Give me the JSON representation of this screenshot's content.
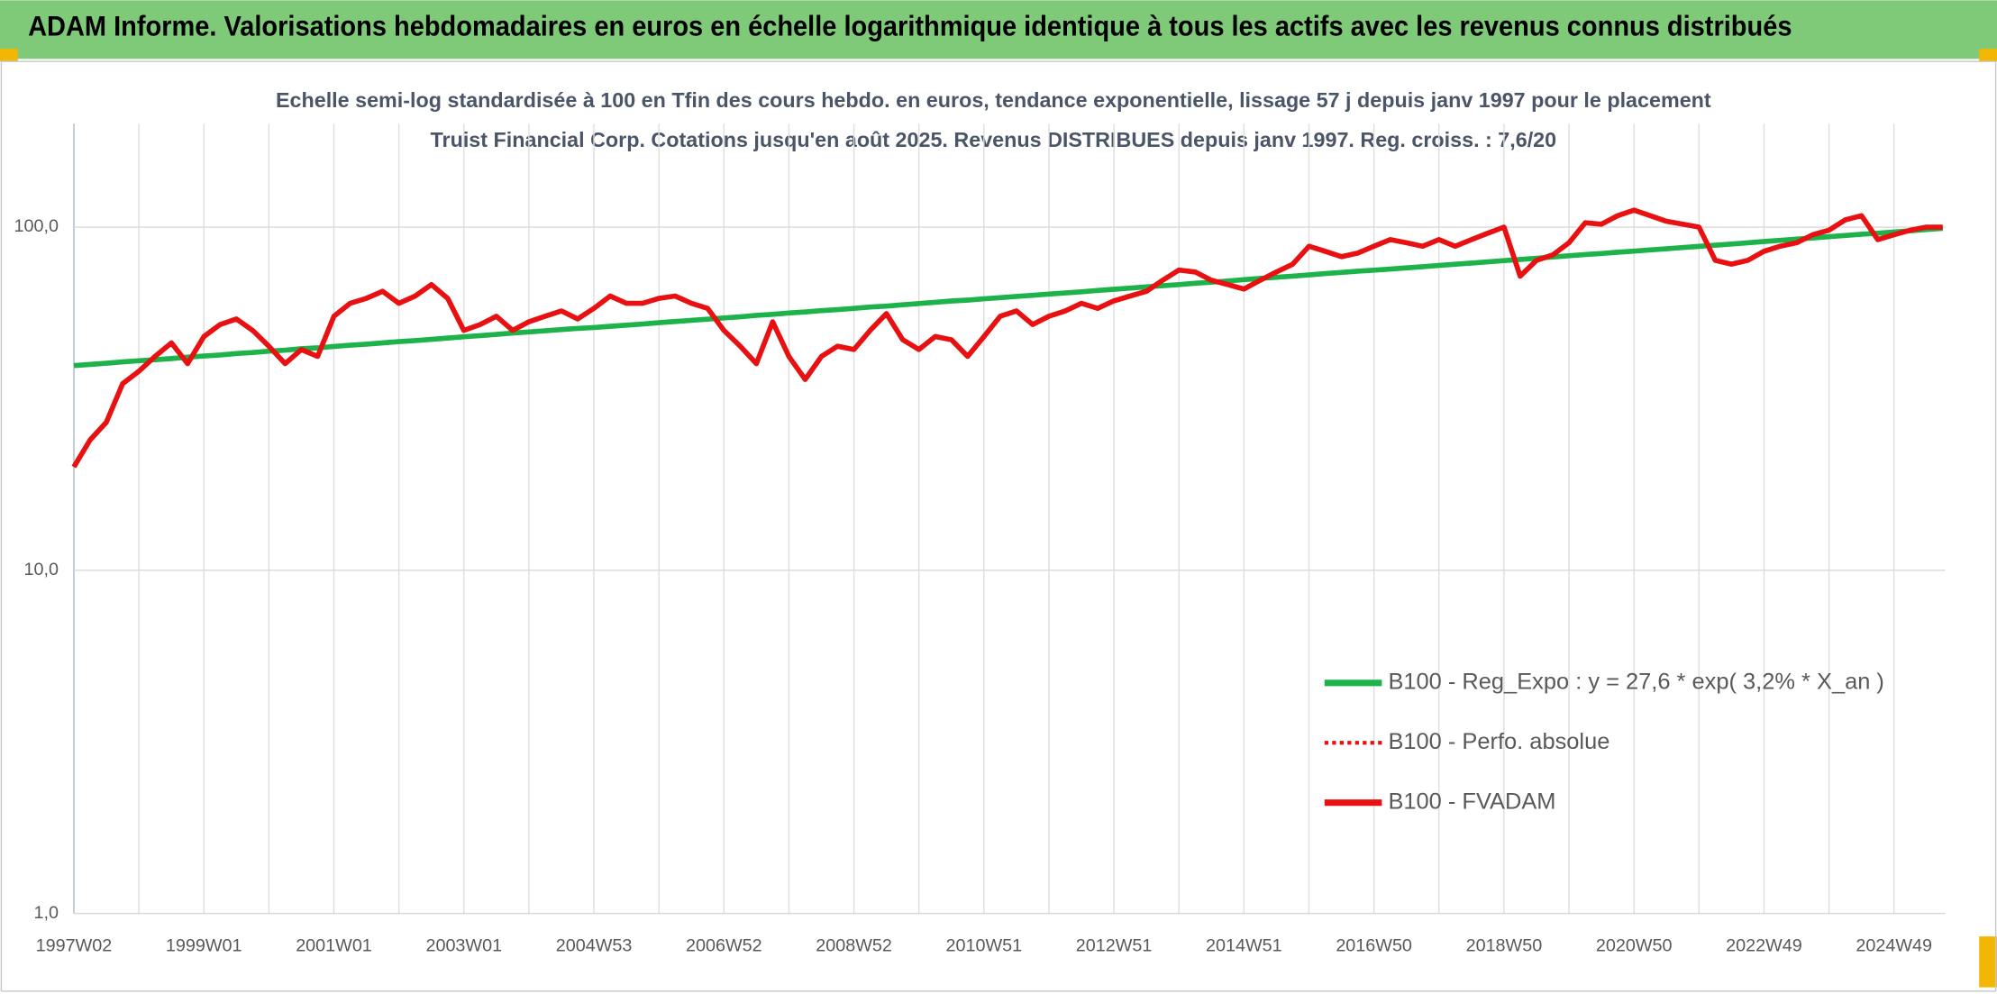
{
  "chart_data": {
    "type": "line",
    "title": "ADAM Informe. Valorisations hebdomadaires en euros en échelle logarithmique identique à tous les actifs avec les revenus connus distribués",
    "subtitle": "Echelle semi-log standardisée à 100 en Tfin des cours hebdo. en euros, tendance exponentielle, lissage 57 j depuis janv 1997 pour le placement Truist Financial Corp. Cotations jusqu'en août 2025. Revenus DISTRIBUES depuis janv 1997. Reg. croiss. : 7,6/20",
    "categories": [
      "1997W02",
      null,
      null,
      null,
      null,
      null,
      null,
      null,
      "1999W01",
      null,
      null,
      null,
      null,
      null,
      null,
      null,
      "2001W01",
      null,
      null,
      null,
      null,
      null,
      null,
      null,
      "2003W01",
      null,
      null,
      null,
      null,
      null,
      null,
      null,
      "2004W53",
      null,
      null,
      null,
      null,
      null,
      null,
      null,
      "2006W52",
      null,
      null,
      null,
      null,
      null,
      null,
      null,
      "2008W52",
      null,
      null,
      null,
      null,
      null,
      null,
      null,
      "2010W51",
      null,
      null,
      null,
      null,
      null,
      null,
      null,
      "2012W51",
      null,
      null,
      null,
      null,
      null,
      null,
      null,
      "2014W51",
      null,
      null,
      null,
      null,
      null,
      null,
      null,
      "2016W50",
      null,
      null,
      null,
      null,
      null,
      null,
      null,
      "2018W50",
      null,
      null,
      null,
      null,
      null,
      null,
      null,
      "2020W50",
      null,
      null,
      null,
      null,
      null,
      null,
      null,
      "2022W49",
      null,
      null,
      null,
      null,
      null,
      null,
      null,
      "2024W49",
      null,
      null,
      null
    ],
    "series": [
      {
        "name": "B100 - Reg_Expo : y = 27,6 * exp( 3,2% *  X_an )",
        "color": "#1db34a",
        "style": "solid",
        "values": [
          39.5,
          39.8,
          40.1,
          40.5,
          40.8,
          41.1,
          41.4,
          41.8,
          42.1,
          42.4,
          42.8,
          43.1,
          43.5,
          43.8,
          44.2,
          44.5,
          44.9,
          45.3,
          45.6,
          46.0,
          46.4,
          46.7,
          47.1,
          47.5,
          47.9,
          48.3,
          48.7,
          49.1,
          49.5,
          49.9,
          50.3,
          50.7,
          51.0,
          51.4,
          51.8,
          52.2,
          52.7,
          53.1,
          53.5,
          53.9,
          54.4,
          54.8,
          55.3,
          55.7,
          56.2,
          56.6,
          57.1,
          57.5,
          58.0,
          58.5,
          58.9,
          59.4,
          59.9,
          60.4,
          60.9,
          61.3,
          61.8,
          62.3,
          62.8,
          63.3,
          63.8,
          64.3,
          64.8,
          65.4,
          65.9,
          66.4,
          67.0,
          67.5,
          68.0,
          68.6,
          69.1,
          69.7,
          70.3,
          70.9,
          71.4,
          72.0,
          72.6,
          73.2,
          73.8,
          74.4,
          74.9,
          75.5,
          76.1,
          76.7,
          77.3,
          78.0,
          78.6,
          79.2,
          79.9,
          80.5,
          81.2,
          81.8,
          82.5,
          83.2,
          83.8,
          84.5,
          85.1,
          85.8,
          86.5,
          87.2,
          87.9,
          88.6,
          89.3,
          90.0,
          90.8,
          91.5,
          92.3,
          93.0,
          93.8,
          94.5,
          95.3,
          96.0,
          96.8,
          97.6,
          98.4,
          99.2
        ]
      },
      {
        "name": "B100 - Perfo. absolue",
        "color": "#e81010",
        "style": "dotted",
        "values": [
          null,
          null,
          null,
          null,
          null,
          null,
          null,
          null,
          null,
          null,
          null,
          null,
          null,
          null,
          null,
          null,
          null,
          null,
          null,
          null,
          null,
          null,
          null,
          null,
          null,
          null,
          null,
          null,
          null,
          null,
          null,
          null,
          null,
          null,
          null,
          null,
          null,
          null,
          null,
          null,
          null,
          null,
          null,
          null,
          null,
          null,
          null,
          null,
          null,
          null,
          null,
          null,
          null,
          null,
          null,
          null,
          null,
          null,
          null,
          null,
          null,
          null,
          null,
          null,
          null,
          null,
          null,
          null,
          null,
          null,
          null,
          null,
          null,
          null,
          null,
          null,
          null,
          null,
          null,
          null,
          null,
          null,
          null,
          null,
          null,
          null,
          null,
          null,
          null,
          null,
          null,
          null,
          null,
          null,
          null,
          null,
          null,
          null,
          null,
          null,
          null,
          null,
          null,
          null,
          null,
          null,
          null,
          null,
          null,
          null,
          null,
          null,
          null,
          null,
          null,
          null
        ]
      },
      {
        "name": "B100 - FVADAM",
        "color": "#e81010",
        "style": "solid",
        "values": [
          20,
          24,
          27,
          35,
          38,
          42,
          46,
          40,
          48,
          52,
          54,
          50,
          45,
          40,
          44,
          42,
          55,
          60,
          62,
          65,
          60,
          63,
          68,
          62,
          50,
          52,
          55,
          50,
          53,
          55,
          57,
          54,
          58,
          63,
          60,
          60,
          62,
          63,
          60,
          58,
          50,
          45,
          40,
          53,
          42,
          36,
          42,
          45,
          44,
          50,
          56,
          47,
          44,
          48,
          47,
          42,
          48,
          55,
          57,
          52,
          55,
          57,
          60,
          58,
          61,
          63,
          65,
          70,
          75,
          74,
          70,
          68,
          66,
          70,
          74,
          78,
          88,
          85,
          82,
          84,
          88,
          92,
          90,
          88,
          92,
          88,
          92,
          96,
          100,
          72,
          80,
          83,
          90,
          103,
          102,
          108,
          112,
          108,
          104,
          102,
          100,
          80,
          78,
          80,
          85,
          88,
          90,
          95,
          98,
          105,
          108,
          92,
          95,
          98,
          100,
          100
        ]
      }
    ],
    "log_scale": true,
    "ylim": [
      1,
      200
    ],
    "yticks": [
      {
        "value": 1,
        "label": "1,0"
      },
      {
        "value": 10,
        "label": "10,0"
      },
      {
        "value": 100,
        "label": "100,0"
      }
    ],
    "grid": true,
    "legend": "lower right"
  }
}
